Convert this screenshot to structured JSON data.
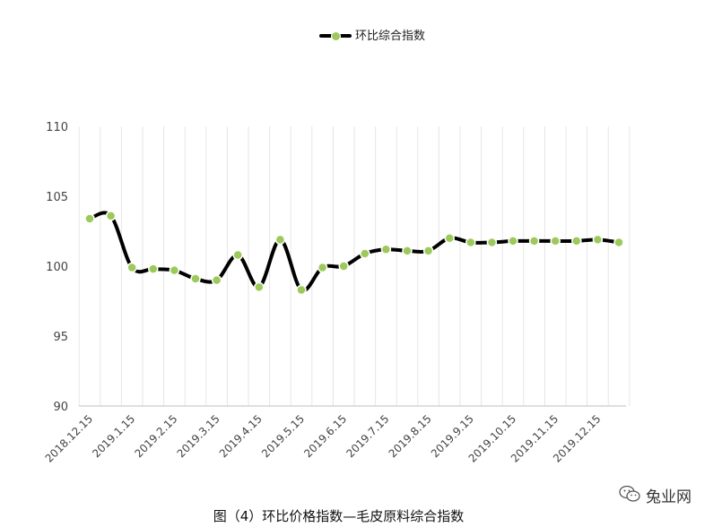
{
  "chart_data": {
    "type": "line",
    "ylim": [
      90,
      110
    ],
    "yticks": [
      90,
      95,
      100,
      105,
      110
    ],
    "xticks": [
      "2018.12.15",
      "2019.1.15",
      "2019.2.15",
      "2019.3.15",
      "2019.4.15",
      "2019.5.15",
      "2019.6.15",
      "2019.7.15",
      "2019.8.15",
      "2019.9.15",
      "2019.10.15",
      "2019.11.15",
      "2019.12.15"
    ],
    "series": [
      {
        "name": "环比综合指数",
        "color": "#000000",
        "marker_color": "#9cc95a",
        "values": [
          103.4,
          103.6,
          99.9,
          99.8,
          99.7,
          99.1,
          99.0,
          100.8,
          98.5,
          101.9,
          98.3,
          99.9,
          100.0,
          100.9,
          101.2,
          101.1,
          101.1,
          102.0,
          101.7,
          101.7,
          101.8,
          101.8,
          101.8,
          101.8,
          101.9,
          101.7
        ]
      }
    ],
    "grid": "vertical",
    "legend_position": "top"
  },
  "legend": {
    "label": "环比综合指数"
  },
  "caption": "图（4）环比价格指数—毛皮原料综合指数",
  "watermark": {
    "icon": "wechat-icon",
    "text": "兔业网"
  }
}
